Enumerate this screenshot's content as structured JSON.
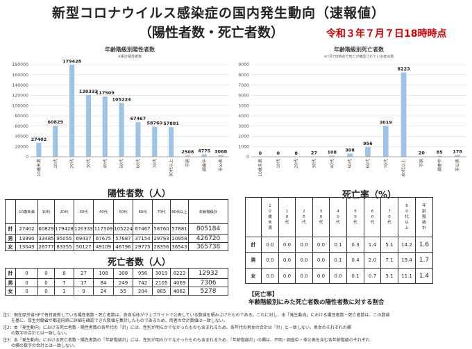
{
  "header": {
    "title_line1": "新型コロナウイルス感染症の国内発生動向（速報値）",
    "title_line2": "（陽性者数・死亡者数）",
    "date": "令和３年７月７日18時時点"
  },
  "chart_data": [
    {
      "type": "bar",
      "title": "年齢階級別陽性者数",
      "subtitle": "※累計陽性者数",
      "categories": [
        "10歳未満",
        "10代",
        "20代",
        "30代",
        "40代",
        "50代",
        "60代",
        "70代",
        "80代以上",
        "不明",
        "調査中",
        "非公表"
      ],
      "values": [
        27402,
        60829,
        179428,
        120333,
        117509,
        105224,
        67467,
        58760,
        57881,
        2508,
        4775,
        3068
      ],
      "ylim": [
        0,
        180000
      ],
      "yticks": [
        "0",
        "20000",
        "40000",
        "60000",
        "80000",
        "100000",
        "120000",
        "140000",
        "160000",
        "180000"
      ],
      "color": "#9dc3e6"
    },
    {
      "type": "bar",
      "title": "年齢階級別死亡者数",
      "subtitle": "※7月7日時点で死亡が確認されている者の数",
      "categories": [
        "10歳未満",
        "10代",
        "20代",
        "30代",
        "40代",
        "50代",
        "60代",
        "70代",
        "80代以上",
        "不明",
        "調査中",
        "非公表"
      ],
      "values": [
        0,
        0,
        8,
        27,
        108,
        308,
        956,
        3019,
        8223,
        20,
        85,
        178
      ],
      "ylim": [
        0,
        9000
      ],
      "yticks": [
        "0",
        "1000",
        "2000",
        "3000",
        "4000",
        "5000",
        "6000",
        "7000",
        "8000",
        "9000"
      ],
      "color": "#9dc3e6"
    }
  ],
  "positive_table": {
    "heading": "陽性者数（人）",
    "columns": [
      "10歳未満",
      "10代",
      "20代",
      "30代",
      "40代",
      "50代",
      "60代",
      "70代",
      "80代以上",
      "年齢階級計"
    ],
    "rows": [
      {
        "label": "計",
        "values": [
          "27402",
          "60829",
          "179428",
          "120333",
          "117509",
          "105224",
          "67467",
          "58760",
          "57881",
          "805184"
        ]
      },
      {
        "label": "男",
        "values": [
          "13990",
          "33485",
          "95055",
          "69437",
          "67675",
          "57687",
          "37154",
          "29793",
          "20958",
          "426720"
        ]
      },
      {
        "label": "女",
        "values": [
          "13043",
          "26777",
          "83355",
          "50127",
          "49109",
          "46796",
          "29775",
          "28356",
          "36543",
          "365738"
        ]
      }
    ]
  },
  "death_table": {
    "heading": "死亡者数（人）",
    "rows": [
      {
        "label": "計",
        "values": [
          "0",
          "0",
          "8",
          "27",
          "108",
          "308",
          "956",
          "3019",
          "8223",
          "12932"
        ]
      },
      {
        "label": "男",
        "values": [
          "0",
          "0",
          "7",
          "17",
          "84",
          "249",
          "742",
          "2105",
          "4069",
          "7306"
        ]
      },
      {
        "label": "女",
        "values": [
          "0",
          "0",
          "1",
          "9",
          "24",
          "55",
          "204",
          "885",
          "4062",
          "5278"
        ]
      }
    ]
  },
  "rate_table": {
    "heading": "死亡率（%）",
    "columns": [
      "10歳未満",
      "10代",
      "20代",
      "30代",
      "40代",
      "50代",
      "60代",
      "70代",
      "80代以上",
      "年齢階級計"
    ],
    "rows": [
      {
        "label": "計",
        "values": [
          "0.0",
          "0.0",
          "0.0",
          "0.0",
          "0.1",
          "0.3",
          "1.4",
          "5.1",
          "14.2",
          "1.6"
        ]
      },
      {
        "label": "男",
        "values": [
          "0.0",
          "0.0",
          "0.0",
          "0.0",
          "0.1",
          "0.4",
          "2.0",
          "7.1",
          "19.4",
          "1.7"
        ]
      },
      {
        "label": "女",
        "values": [
          "0.0",
          "0.0",
          "0.0",
          "0.0",
          "0.0",
          "0.1",
          "0.7",
          "3.1",
          "11.1",
          "1.4"
        ]
      }
    ]
  },
  "mortality_note": {
    "line1": "【死亡率】",
    "line2": "年齢階級別にみた死亡者数の陽性者数に対する割合"
  },
  "notes": [
    "注1：現在厚労省HPで毎日更新している陽性者数・死亡者数は、各自治体がウェブサイトで公表している数値を積み上げたものである。これに対し、本「発生動向」における陽性者数・死亡者数は、この数値",
    "　　を基に、厚生労働省が都道府県に詳細を確認できた数値を集計したものであるため、両者の合計数値は一致しない。",
    "注2：本「発生動向」における死亡者数・陽性者数の各年代の「計」には、性別が明らかでなかったものも含まれるため、各年代の男女の合計は「計」と一致しない。男女のそれぞれの欄",
    "　　の数字の合計とは一致しない。",
    "注3：本「発生動向」における死亡者数・陽性者数の「年齢階級計」には、性別が明らかでなかったものも含まれるため、「年齢階級計」の欄は、不明・調査中・非公表を含む各年齢階級のそれぞれ",
    "　　の欄の数字の合計とは一致しない。"
  ]
}
